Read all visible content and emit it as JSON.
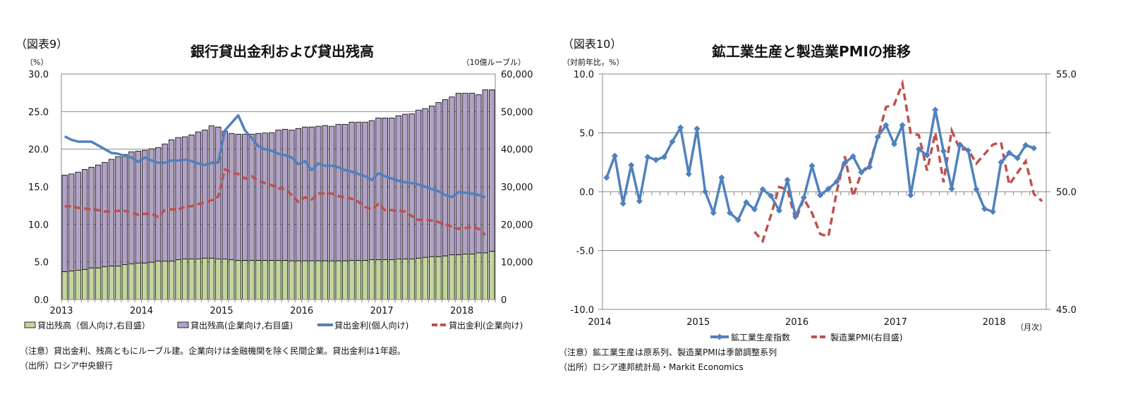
{
  "chart_data": [
    {
      "type": "bar",
      "figure_label": "（図表9）",
      "title": "銀行貸出金利および貸出残高",
      "ylabel_left": "（%）",
      "ylabel_right": "（10億ルーブル）",
      "ylim_left": [
        0,
        30
      ],
      "ylim_right": [
        0,
        60000
      ],
      "yticks_left": [
        "0.0",
        "5.0",
        "10.0",
        "15.0",
        "20.0",
        "25.0",
        "30.0"
      ],
      "yticks_right": [
        "0",
        "10,000",
        "20,000",
        "30,000",
        "40,000",
        "50,000",
        "60,000"
      ],
      "x_start": "2013-01",
      "frequency": "monthly",
      "xtick_labels": [
        "2013",
        "2014",
        "2015",
        "2016",
        "2017",
        "2018"
      ],
      "grid": true,
      "legend_position": "bottom",
      "stacked": true,
      "series": [
        {
          "name": "貸出残高（個人向け,右目盛）",
          "kind": "bar",
          "axis": "right",
          "color": "#c3d69b",
          "values": [
            7400,
            7600,
            7800,
            8000,
            8400,
            8400,
            8750,
            8900,
            8900,
            9300,
            9500,
            9700,
            9700,
            9900,
            10250,
            10250,
            10250,
            10600,
            10800,
            10800,
            10800,
            11000,
            11000,
            10800,
            10800,
            10600,
            10400,
            10400,
            10400,
            10400,
            10400,
            10400,
            10400,
            10400,
            10300,
            10300,
            10300,
            10300,
            10300,
            10300,
            10300,
            10300,
            10300,
            10400,
            10400,
            10400,
            10600,
            10600,
            10600,
            10600,
            10800,
            10800,
            10800,
            11000,
            11200,
            11400,
            11400,
            11600,
            11900,
            11900,
            12100,
            12100,
            12400,
            12400,
            12800
          ]
        },
        {
          "name": "貸出残高(企業向け,右目盛)",
          "kind": "bar",
          "axis": "right",
          "color": "#b3a2c7",
          "total_values": [
            33100,
            33400,
            33900,
            34600,
            35200,
            35800,
            36500,
            37300,
            38000,
            38600,
            39300,
            39500,
            39700,
            40100,
            40400,
            41400,
            42500,
            43100,
            43300,
            43800,
            44600,
            45100,
            46200,
            45900,
            44800,
            44200,
            44000,
            44000,
            44000,
            44200,
            44300,
            44400,
            45100,
            45300,
            45100,
            45500,
            45900,
            45900,
            46100,
            46300,
            46100,
            46600,
            46600,
            47200,
            47200,
            47200,
            47600,
            48300,
            48300,
            48300,
            48900,
            49300,
            49400,
            50400,
            50800,
            51500,
            52400,
            53200,
            53900,
            54900,
            54900,
            54900,
            54500,
            55800,
            55800
          ]
        },
        {
          "name": "貸出金利(個人向け)",
          "kind": "line",
          "axis": "left",
          "color": "#4f81bd",
          "values": [
            21.7,
            21.25,
            21.0,
            21.0,
            21.0,
            20.5,
            20.0,
            19.5,
            19.4,
            19.1,
            18.9,
            18.3,
            18.9,
            18.5,
            18.2,
            18.2,
            18.5,
            18.5,
            18.6,
            18.4,
            18.1,
            17.9,
            18.2,
            18.2,
            22.5,
            23.5,
            24.5,
            22.5,
            21.5,
            20.4,
            20.0,
            19.8,
            19.4,
            19.2,
            18.9,
            18.0,
            18.4,
            17.2,
            18.1,
            17.8,
            17.8,
            17.6,
            17.2,
            17.0,
            16.7,
            16.4,
            15.9,
            16.8,
            16.4,
            16.1,
            15.8,
            15.6,
            15.5,
            15.3,
            15.0,
            14.7,
            14.4,
            13.9,
            13.6,
            14.3,
            14.2,
            14.1,
            13.9,
            13.6,
            null
          ]
        },
        {
          "name": "貸出金利(企業向け)",
          "kind": "dashed-line",
          "axis": "left",
          "color": "#c0504d",
          "values": [
            12.4,
            12.4,
            12.2,
            12.1,
            12.0,
            11.9,
            11.7,
            11.7,
            11.8,
            11.8,
            11.5,
            11.3,
            11.4,
            11.4,
            11.0,
            11.9,
            12.0,
            12.0,
            12.3,
            12.4,
            12.7,
            12.9,
            13.2,
            13.7,
            17.3,
            16.9,
            16.7,
            16.1,
            16.4,
            15.8,
            15.5,
            15.2,
            14.8,
            14.7,
            13.9,
            13.0,
            13.6,
            13.3,
            14.1,
            14.1,
            14.1,
            13.75,
            13.6,
            13.4,
            13.0,
            12.3,
            12.0,
            12.7,
            11.9,
            11.9,
            11.8,
            11.7,
            11.1,
            10.6,
            10.6,
            10.5,
            10.3,
            10.0,
            9.7,
            9.4,
            9.5,
            9.7,
            9.4,
            8.6,
            null
          ]
        }
      ],
      "notes": [
        "（注意）貸出金利、残高ともにルーブル建。企業向けは金融機関を除く民間企業。貸出金利は1年超。",
        "（出所）ロシア中央銀行"
      ]
    },
    {
      "type": "line",
      "figure_label": "（図表10）",
      "title": "鉱工業生産と製造業PMIの推移",
      "ylabel_left": "（対前年比，%）",
      "xlabel": "（月次）",
      "ylim_left": [
        -10,
        10
      ],
      "ylim_right": [
        45,
        55
      ],
      "yticks_left": [
        "-10.0",
        "-5.0",
        "0.0",
        "5.0",
        "10.0"
      ],
      "yticks_right": [
        "45.0",
        "50.0",
        "55.0"
      ],
      "x_start": "2014-01",
      "frequency": "monthly",
      "xtick_labels": [
        "2014",
        "2015",
        "2016",
        "2017",
        "2018"
      ],
      "grid": true,
      "legend_position": "bottom",
      "series": [
        {
          "name": "鉱工業生産指数",
          "kind": "line-marker",
          "axis": "left",
          "color": "#4f81bd",
          "values": [
            1.2,
            3.05,
            -1.0,
            2.25,
            -0.8,
            2.95,
            2.7,
            2.95,
            4.25,
            5.45,
            1.5,
            5.35,
            0.0,
            -1.8,
            1.2,
            -1.8,
            -2.4,
            -0.9,
            -1.5,
            0.2,
            -0.35,
            -1.6,
            1.0,
            -2.1,
            -0.5,
            2.2,
            -0.3,
            0.25,
            0.85,
            2.45,
            3.0,
            1.65,
            2.1,
            4.65,
            5.65,
            4.05,
            5.65,
            -0.3,
            3.6,
            3.1,
            6.95,
            3.45,
            0.25,
            4.0,
            3.5,
            0.2,
            -1.45,
            -1.7,
            2.5,
            3.3,
            2.85,
            3.95,
            3.7,
            null
          ]
        },
        {
          "name": "製造業PMI(右目盛)",
          "kind": "dashed-line",
          "axis": "right",
          "color": "#c0504d",
          "values": [
            null,
            null,
            null,
            null,
            null,
            null,
            null,
            null,
            null,
            null,
            null,
            null,
            null,
            null,
            null,
            null,
            null,
            null,
            48.3,
            47.9,
            49.0,
            50.2,
            50.1,
            48.8,
            49.7,
            49.1,
            48.2,
            48.1,
            50.0,
            51.5,
            49.8,
            50.8,
            51.2,
            52.3,
            53.6,
            53.7,
            54.6,
            52.5,
            52.4,
            50.9,
            52.5,
            50.4,
            52.6,
            51.8,
            51.8,
            51.2,
            51.6,
            52.0,
            52.1,
            50.3,
            50.8,
            51.3,
            49.9,
            49.6
          ]
        }
      ],
      "notes": [
        "（注意）鉱工業生産は原系列、製造業PMIは季節調整系列",
        "（出所）ロシア連邦統計局・Markit Economics"
      ]
    }
  ]
}
